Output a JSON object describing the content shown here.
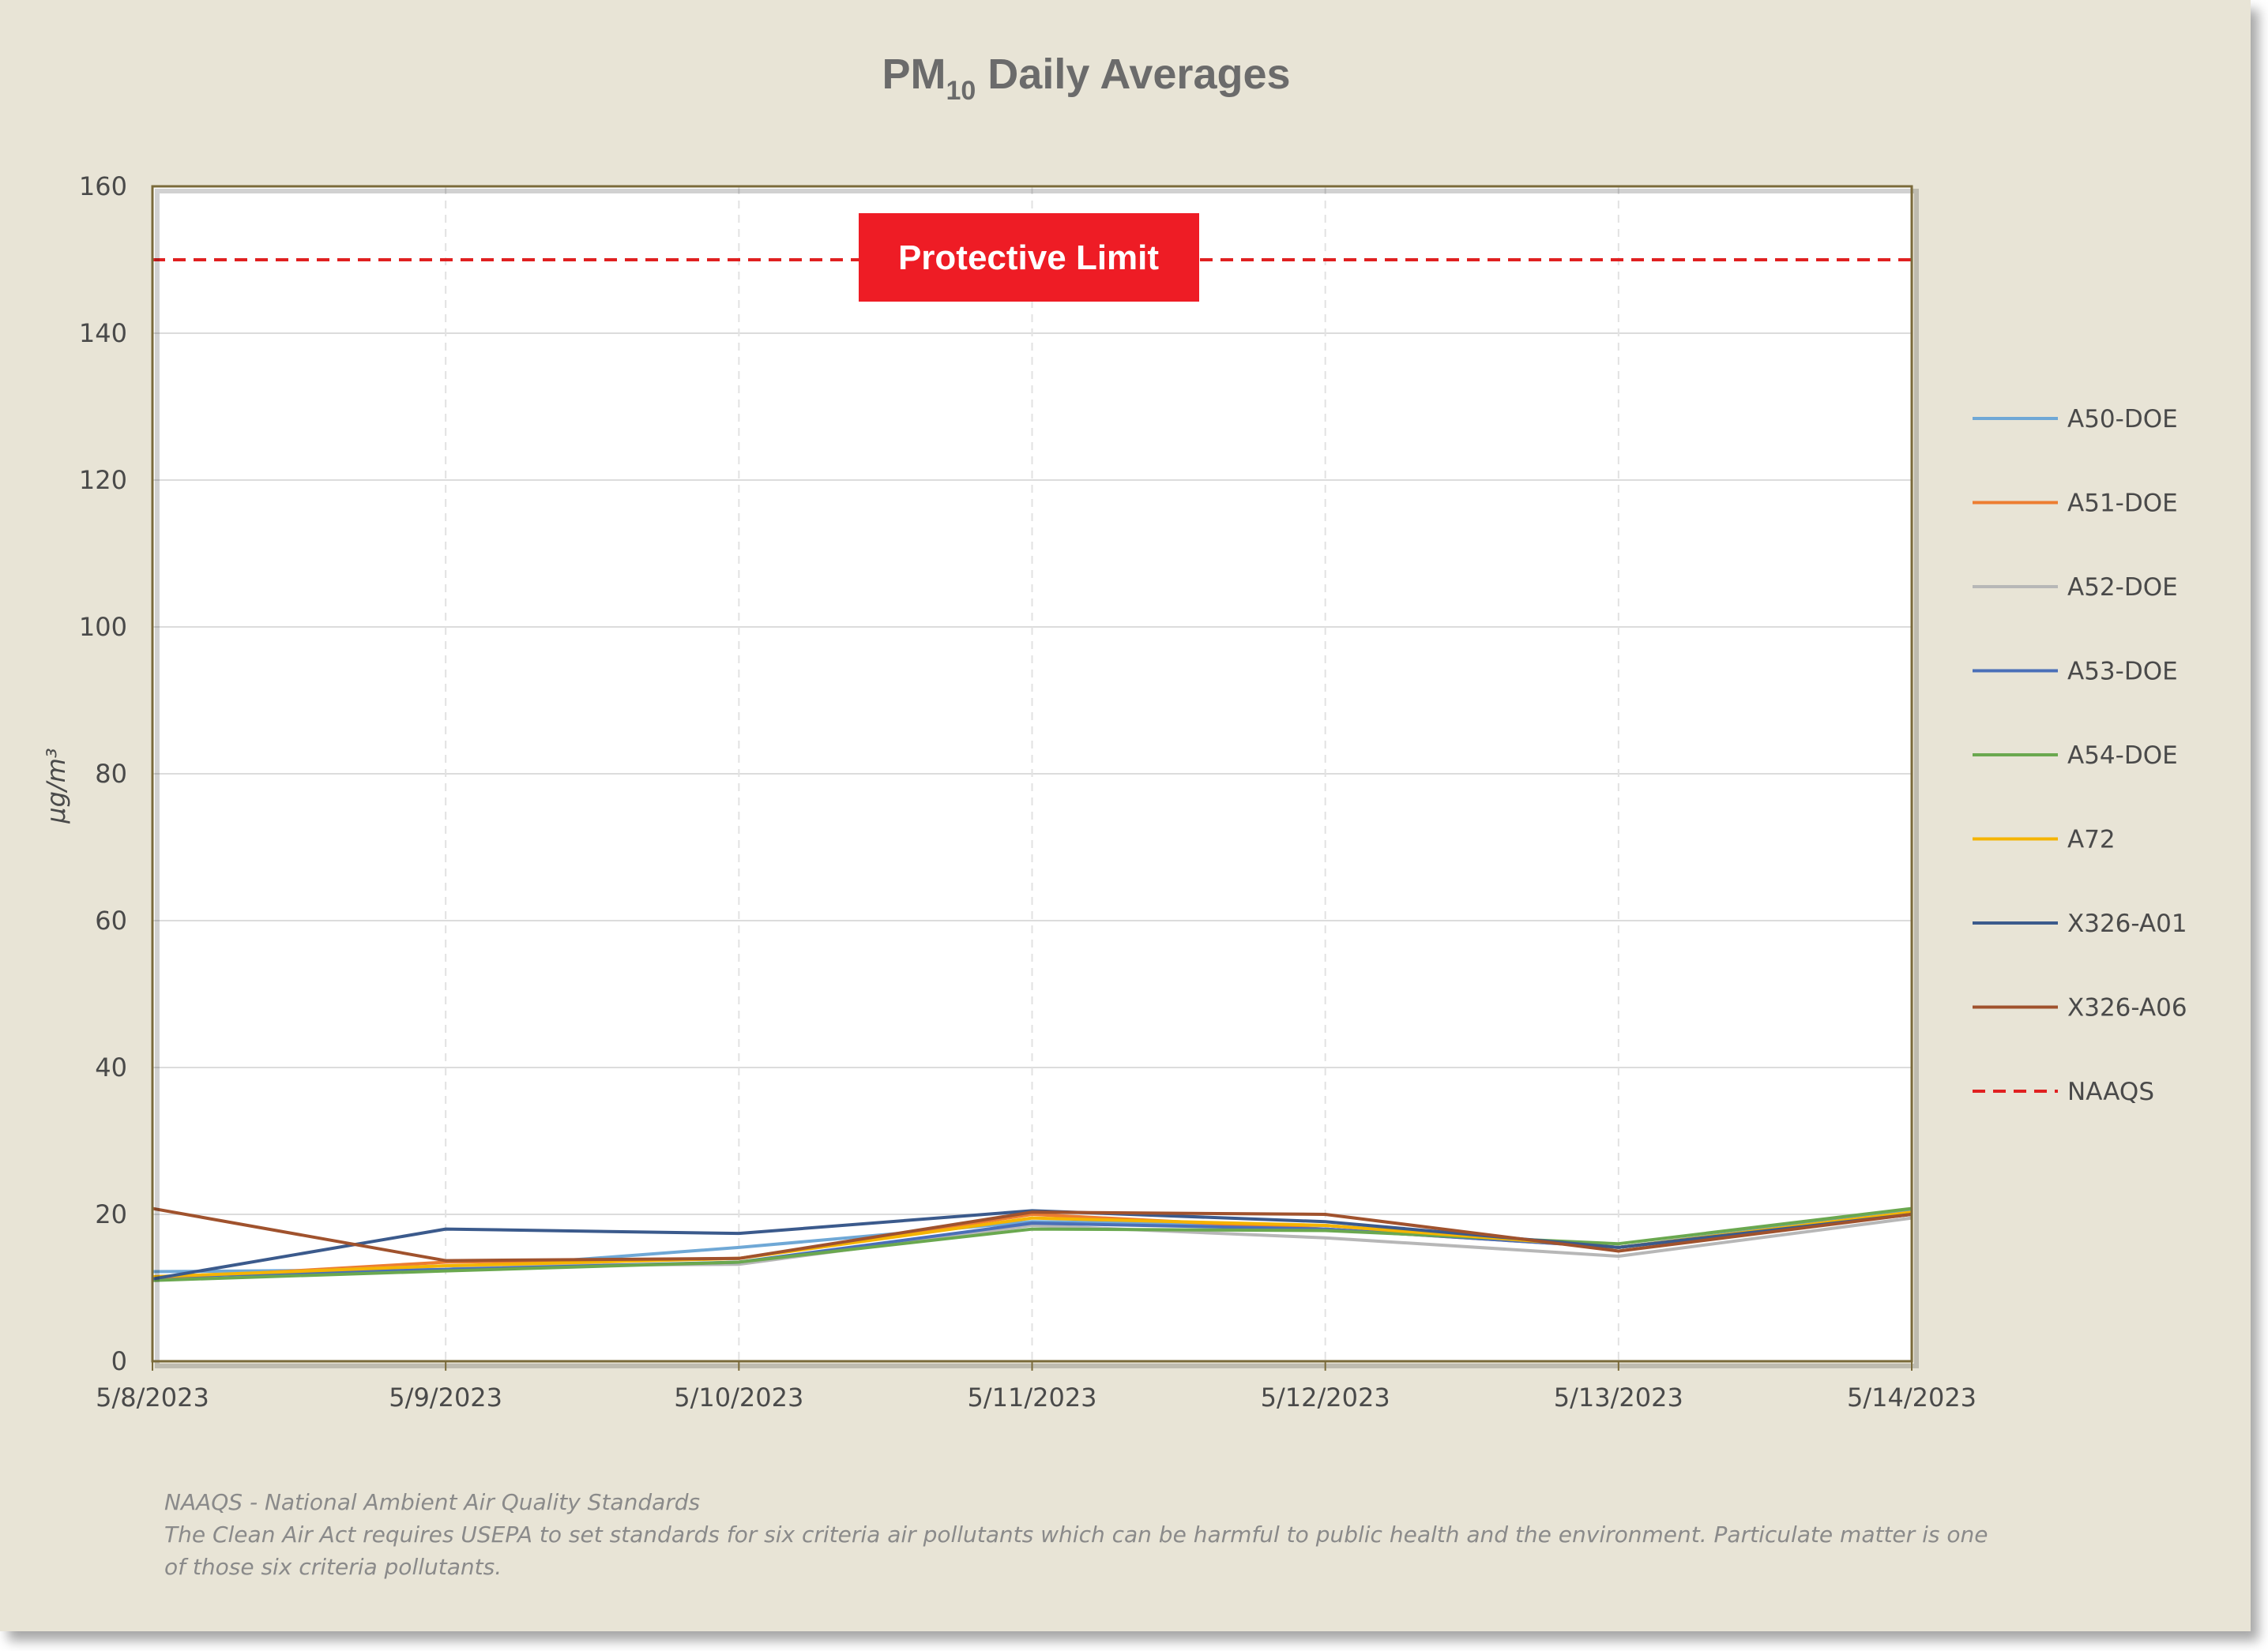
{
  "chart_data": {
    "type": "line",
    "title": {
      "main": "PM",
      "subscript": "10",
      "rest": " Daily Averages"
    },
    "ylabel": "µg/m³",
    "xlabel": "",
    "ylim": [
      0,
      160
    ],
    "yticks": [
      0,
      20,
      40,
      60,
      80,
      100,
      120,
      140,
      160
    ],
    "categories": [
      "5/8/2023",
      "5/9/2023",
      "5/10/2023",
      "5/11/2023",
      "5/12/2023",
      "5/13/2023",
      "5/14/2023"
    ],
    "grid": "horizontal solid, vertical dashed",
    "legend_position": "right",
    "series": [
      {
        "name": "A50-DOE",
        "color": "#6fa8d6",
        "values": [
          12.2,
          12.5,
          15.5,
          19.0,
          18.5,
          15.5,
          20.5
        ]
      },
      {
        "name": "A51-DOE",
        "color": "#ed7d31",
        "values": [
          11.2,
          13.5,
          14.0,
          20.0,
          18.0,
          15.5,
          20.0
        ]
      },
      {
        "name": "A52-DOE",
        "color": "#b7b7b7",
        "values": [
          11.5,
          13.0,
          13.2,
          18.5,
          16.8,
          14.3,
          19.5
        ]
      },
      {
        "name": "A53-DOE",
        "color": "#4a6fb8",
        "values": [
          11.5,
          12.5,
          13.5,
          18.8,
          18.0,
          15.5,
          20.3
        ]
      },
      {
        "name": "A54-DOE",
        "color": "#6aa84f",
        "values": [
          11.0,
          12.3,
          13.5,
          18.0,
          17.8,
          16.0,
          20.8
        ]
      },
      {
        "name": "A72",
        "color": "#f5b400",
        "values": [
          11.5,
          13.0,
          14.0,
          19.5,
          18.5,
          15.5,
          20.3
        ]
      },
      {
        "name": "X326-A01",
        "color": "#3b5a8c",
        "values": [
          11.2,
          18.0,
          17.4,
          20.5,
          19.0,
          15.5,
          20.0
        ]
      },
      {
        "name": "X326-A06",
        "color": "#a0522d",
        "values": [
          20.8,
          13.7,
          14.0,
          20.3,
          20.0,
          15.0,
          20.0
        ]
      }
    ],
    "reference_line": {
      "name": "NAAQS",
      "value": 150,
      "color": "#e02020",
      "label": "Protective Limit",
      "label_bg": "#ee1c25"
    },
    "footnote": [
      "NAAQS - National Ambient Air Quality Standards",
      "The Clean Air Act requires USEPA to set standards for six criteria air pollutants which can be harmful to public health and the environment.  Particulate matter is one",
      "of those six criteria pollutants."
    ]
  }
}
